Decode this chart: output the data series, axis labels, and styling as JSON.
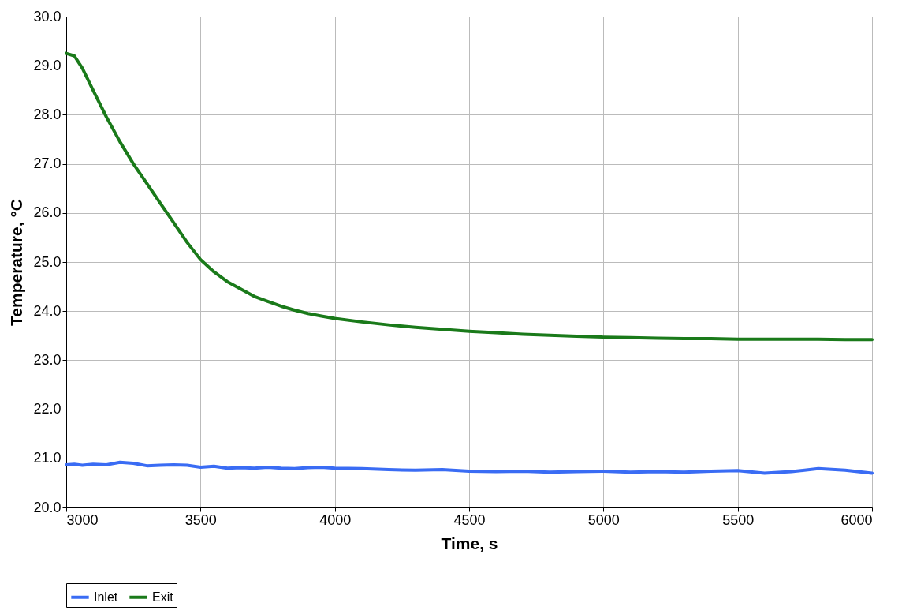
{
  "chart_data": {
    "type": "line",
    "xlabel": "Time, s",
    "ylabel": "Temperature, °C",
    "x": [
      3000,
      3030,
      3060,
      3100,
      3150,
      3200,
      3250,
      3300,
      3350,
      3400,
      3450,
      3500,
      3550,
      3600,
      3650,
      3700,
      3750,
      3800,
      3850,
      3900,
      3950,
      4000,
      4100,
      4200,
      4300,
      4400,
      4500,
      4600,
      4700,
      4800,
      4900,
      5000,
      5100,
      5200,
      5300,
      5400,
      5500,
      5600,
      5700,
      5800,
      5900,
      6000
    ],
    "series": [
      {
        "name": "Inlet",
        "color": "#3a6cf4",
        "values": [
          20.87,
          20.88,
          20.86,
          20.88,
          20.87,
          20.92,
          20.9,
          20.85,
          20.86,
          20.87,
          20.86,
          20.82,
          20.84,
          20.8,
          20.81,
          20.8,
          20.82,
          20.8,
          20.79,
          20.81,
          20.82,
          20.8,
          20.79,
          20.77,
          20.76,
          20.77,
          20.74,
          20.73,
          20.74,
          20.72,
          20.73,
          20.74,
          20.72,
          20.73,
          20.72,
          20.74,
          20.75,
          20.7,
          20.73,
          20.79,
          20.76,
          20.7
        ]
      },
      {
        "name": "Exit",
        "color": "#1a7a1a",
        "values": [
          29.25,
          29.2,
          28.95,
          28.5,
          27.95,
          27.45,
          27.0,
          26.6,
          26.2,
          25.8,
          25.4,
          25.05,
          24.8,
          24.6,
          24.45,
          24.3,
          24.2,
          24.1,
          24.02,
          23.95,
          23.9,
          23.85,
          23.78,
          23.72,
          23.67,
          23.63,
          23.59,
          23.56,
          23.53,
          23.51,
          23.49,
          23.47,
          23.46,
          23.45,
          23.44,
          23.44,
          23.43,
          23.43,
          23.43,
          23.43,
          23.42,
          23.42
        ]
      }
    ],
    "xlim": [
      3000,
      6000
    ],
    "xticks": [
      3000,
      3500,
      4000,
      4500,
      5000,
      5500,
      6000
    ],
    "ylim": [
      20,
      30
    ],
    "yticks": [
      {
        "value": 20,
        "label": "20.0"
      },
      {
        "value": 21,
        "label": "21.0"
      },
      {
        "value": 22,
        "label": "22.0"
      },
      {
        "value": 23,
        "label": "23.0"
      },
      {
        "value": 24,
        "label": "24.0"
      },
      {
        "value": 25,
        "label": "25.0"
      },
      {
        "value": 26,
        "label": "26.0"
      },
      {
        "value": 27,
        "label": "27.0"
      },
      {
        "value": 28,
        "label": "28.0"
      },
      {
        "value": 29,
        "label": "29.0"
      },
      {
        "value": 30,
        "label": "30.0"
      }
    ],
    "grid": true,
    "legend": "bottom",
    "marker": "none",
    "line_style": "solid"
  }
}
